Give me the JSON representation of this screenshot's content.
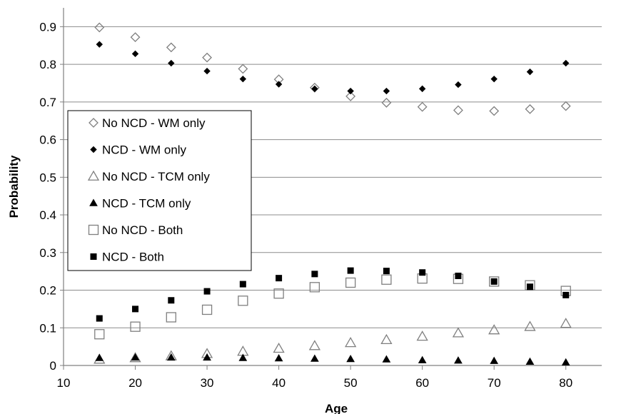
{
  "chart_data": {
    "type": "scatter",
    "title": "",
    "xlabel": "Age",
    "ylabel": "Probability",
    "xlim": [
      10,
      85
    ],
    "ylim": [
      0,
      0.95
    ],
    "xticks": [
      10,
      20,
      30,
      40,
      50,
      60,
      70,
      80
    ],
    "yticks": [
      0,
      0.1,
      0.2,
      0.3,
      0.4,
      0.5,
      0.6,
      0.7,
      0.8,
      0.9
    ],
    "ytick_labels": [
      "0",
      "0.1",
      "0.2",
      "0.3",
      "0.4",
      "0.5",
      "0.6",
      "0.7",
      "0.8",
      "0.9"
    ],
    "grid": "horizontal",
    "legend_position": "left-middle",
    "x": [
      15,
      20,
      25,
      30,
      35,
      40,
      45,
      50,
      55,
      60,
      65,
      70,
      75,
      80
    ],
    "series": [
      {
        "name": "No NCD - WM only",
        "marker": "diamond-open",
        "values": [
          0.898,
          0.872,
          0.845,
          0.818,
          0.788,
          0.76,
          0.738,
          0.715,
          0.698,
          0.687,
          0.678,
          0.676,
          0.681,
          0.689
        ]
      },
      {
        "name": "NCD - WM only",
        "marker": "diamond-filled",
        "values": [
          0.853,
          0.828,
          0.803,
          0.782,
          0.761,
          0.747,
          0.735,
          0.729,
          0.729,
          0.735,
          0.746,
          0.761,
          0.78,
          0.803
        ]
      },
      {
        "name": "No NCD - TCM only",
        "marker": "triangle-open",
        "values": [
          0.016,
          0.02,
          0.025,
          0.031,
          0.037,
          0.045,
          0.052,
          0.06,
          0.068,
          0.077,
          0.086,
          0.094,
          0.103,
          0.111
        ]
      },
      {
        "name": "NCD - TCM only",
        "marker": "triangle-filled",
        "values": [
          0.02,
          0.021,
          0.021,
          0.021,
          0.02,
          0.019,
          0.018,
          0.017,
          0.016,
          0.014,
          0.013,
          0.012,
          0.01,
          0.008
        ]
      },
      {
        "name": "No NCD - Both",
        "marker": "square-open",
        "values": [
          0.083,
          0.103,
          0.128,
          0.148,
          0.172,
          0.191,
          0.208,
          0.22,
          0.228,
          0.231,
          0.23,
          0.223,
          0.213,
          0.198
        ]
      },
      {
        "name": "NCD - Both",
        "marker": "square-filled",
        "values": [
          0.125,
          0.15,
          0.173,
          0.197,
          0.216,
          0.232,
          0.243,
          0.252,
          0.251,
          0.247,
          0.238,
          0.223,
          0.209,
          0.187
        ]
      }
    ]
  }
}
